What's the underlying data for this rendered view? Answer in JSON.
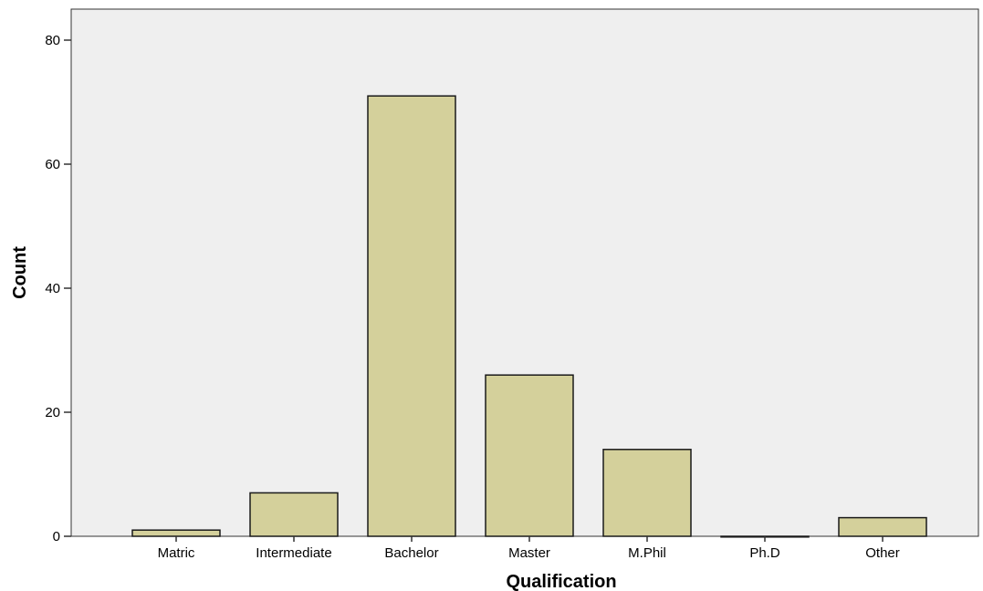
{
  "chart_data": {
    "type": "bar",
    "title": "",
    "xlabel": "Qualification",
    "ylabel": "Count",
    "categories": [
      "Matric",
      "Intermediate",
      "Bachelor",
      "Master",
      "M.Phil",
      "Ph.D",
      "Other"
    ],
    "values": [
      1,
      7,
      71,
      26,
      14,
      0,
      3
    ],
    "ylim": [
      0,
      85
    ],
    "yticks": [
      0,
      20,
      40,
      60,
      80
    ],
    "grid": false,
    "legend": "none",
    "colors": {
      "plot_background": "#efefef",
      "bar_fill": "#d4d09b",
      "bar_stroke": "#1a1a1a",
      "axis": "#333333"
    }
  }
}
